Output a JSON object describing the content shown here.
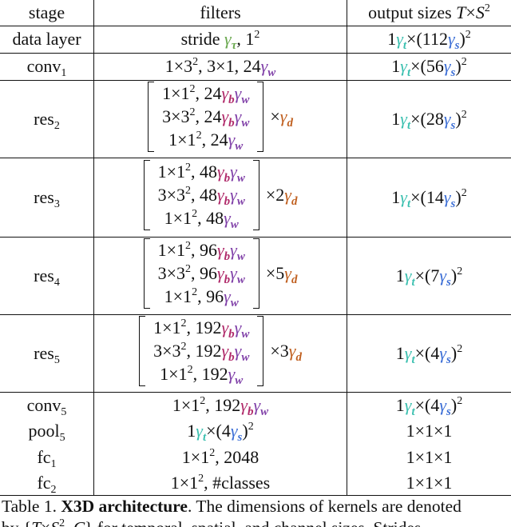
{
  "table": {
    "header": [
      [
        {
          "t": "stage"
        }
      ],
      [
        {
          "t": "filters"
        }
      ],
      [
        {
          "t": "output sizes "
        },
        {
          "t": "T",
          "italic": true
        },
        {
          "t": "×"
        },
        {
          "t": "S",
          "italic": true
        },
        {
          "t": "2",
          "pos": "sup"
        }
      ]
    ],
    "rows": [
      {
        "stage": [
          {
            "t": "data layer"
          }
        ],
        "filters": [
          {
            "t": "stride "
          },
          {
            "t": "γ",
            "sub": "τ",
            "color": "#6aa84f"
          },
          {
            "t": ", 1"
          },
          {
            "t": "2",
            "pos": "sup"
          }
        ],
        "output": [
          {
            "t": "1"
          },
          {
            "t": "γ",
            "sub": "t",
            "color": "#3cc0b0"
          },
          {
            "t": "×(112"
          },
          {
            "t": "γ",
            "sub": "s",
            "color": "#3d6fd6"
          },
          {
            "t": ")"
          },
          {
            "t": "2",
            "pos": "sup"
          }
        ]
      },
      {
        "stage": [
          {
            "t": "conv"
          },
          {
            "t": "1",
            "pos": "sub"
          }
        ],
        "filters": [
          {
            "t": "1×3"
          },
          {
            "t": "2",
            "pos": "sup"
          },
          {
            "t": ", 3×1, 24"
          },
          {
            "t": "γ",
            "sub": "w",
            "color": "#8040a8"
          }
        ],
        "output": [
          {
            "t": "1"
          },
          {
            "t": "γ",
            "sub": "t",
            "color": "#3cc0b0"
          },
          {
            "t": "×(56"
          },
          {
            "t": "γ",
            "sub": "s",
            "color": "#3d6fd6"
          },
          {
            "t": ")"
          },
          {
            "t": "2",
            "pos": "sup"
          }
        ]
      },
      {
        "stage": [
          {
            "t": "res"
          },
          {
            "t": "2",
            "pos": "sub"
          }
        ],
        "block": {
          "lines": [
            [
              {
                "t": "1×1"
              },
              {
                "t": "2",
                "pos": "sup"
              },
              {
                "t": ", 24"
              },
              {
                "t": "γ",
                "sub": "b",
                "color": "#b02a6a"
              },
              {
                "t": "γ",
                "sub": "w",
                "color": "#8040a8"
              }
            ],
            [
              {
                "t": "3×3"
              },
              {
                "t": "2",
                "pos": "sup"
              },
              {
                "t": ", 24"
              },
              {
                "t": "γ",
                "sub": "b",
                "color": "#b02a6a"
              },
              {
                "t": "γ",
                "sub": "w",
                "color": "#8040a8"
              }
            ],
            [
              {
                "t": "1×1"
              },
              {
                "t": "2",
                "pos": "sup"
              },
              {
                "t": ", 24"
              },
              {
                "t": "γ",
                "sub": "w",
                "color": "#8040a8"
              }
            ]
          ],
          "multiplier": [
            {
              "t": "×"
            },
            {
              "t": "γ",
              "sub": "d",
              "color": "#c06020"
            }
          ]
        },
        "output": [
          {
            "t": "1"
          },
          {
            "t": "γ",
            "sub": "t",
            "color": "#3cc0b0"
          },
          {
            "t": "×(28"
          },
          {
            "t": "γ",
            "sub": "s",
            "color": "#3d6fd6"
          },
          {
            "t": ")"
          },
          {
            "t": "2",
            "pos": "sup"
          }
        ]
      },
      {
        "stage": [
          {
            "t": "res"
          },
          {
            "t": "3",
            "pos": "sub"
          }
        ],
        "block": {
          "lines": [
            [
              {
                "t": "1×1"
              },
              {
                "t": "2",
                "pos": "sup"
              },
              {
                "t": ", 48"
              },
              {
                "t": "γ",
                "sub": "b",
                "color": "#b02a6a"
              },
              {
                "t": "γ",
                "sub": "w",
                "color": "#8040a8"
              }
            ],
            [
              {
                "t": "3×3"
              },
              {
                "t": "2",
                "pos": "sup"
              },
              {
                "t": ", 48"
              },
              {
                "t": "γ",
                "sub": "b",
                "color": "#b02a6a"
              },
              {
                "t": "γ",
                "sub": "w",
                "color": "#8040a8"
              }
            ],
            [
              {
                "t": "1×1"
              },
              {
                "t": "2",
                "pos": "sup"
              },
              {
                "t": ", 48"
              },
              {
                "t": "γ",
                "sub": "w",
                "color": "#8040a8"
              }
            ]
          ],
          "multiplier": [
            {
              "t": "×2"
            },
            {
              "t": "γ",
              "sub": "d",
              "color": "#c06020"
            }
          ]
        },
        "output": [
          {
            "t": "1"
          },
          {
            "t": "γ",
            "sub": "t",
            "color": "#3cc0b0"
          },
          {
            "t": "×(14"
          },
          {
            "t": "γ",
            "sub": "s",
            "color": "#3d6fd6"
          },
          {
            "t": ")"
          },
          {
            "t": "2",
            "pos": "sup"
          }
        ]
      },
      {
        "stage": [
          {
            "t": "res"
          },
          {
            "t": "4",
            "pos": "sub"
          }
        ],
        "block": {
          "lines": [
            [
              {
                "t": "1×1"
              },
              {
                "t": "2",
                "pos": "sup"
              },
              {
                "t": ", 96"
              },
              {
                "t": "γ",
                "sub": "b",
                "color": "#b02a6a"
              },
              {
                "t": "γ",
                "sub": "w",
                "color": "#8040a8"
              }
            ],
            [
              {
                "t": "3×3"
              },
              {
                "t": "2",
                "pos": "sup"
              },
              {
                "t": ", 96"
              },
              {
                "t": "γ",
                "sub": "b",
                "color": "#b02a6a"
              },
              {
                "t": "γ",
                "sub": "w",
                "color": "#8040a8"
              }
            ],
            [
              {
                "t": "1×1"
              },
              {
                "t": "2",
                "pos": "sup"
              },
              {
                "t": ", 96"
              },
              {
                "t": "γ",
                "sub": "w",
                "color": "#8040a8"
              }
            ]
          ],
          "multiplier": [
            {
              "t": "×5"
            },
            {
              "t": "γ",
              "sub": "d",
              "color": "#c06020"
            }
          ]
        },
        "output": [
          {
            "t": "1"
          },
          {
            "t": "γ",
            "sub": "t",
            "color": "#3cc0b0"
          },
          {
            "t": "×(7"
          },
          {
            "t": "γ",
            "sub": "s",
            "color": "#3d6fd6"
          },
          {
            "t": ")"
          },
          {
            "t": "2",
            "pos": "sup"
          }
        ]
      },
      {
        "stage": [
          {
            "t": "res"
          },
          {
            "t": "5",
            "pos": "sub"
          }
        ],
        "block": {
          "lines": [
            [
              {
                "t": "1×1"
              },
              {
                "t": "2",
                "pos": "sup"
              },
              {
                "t": ", 192"
              },
              {
                "t": "γ",
                "sub": "b",
                "color": "#b02a6a"
              },
              {
                "t": "γ",
                "sub": "w",
                "color": "#8040a8"
              }
            ],
            [
              {
                "t": "3×3"
              },
              {
                "t": "2",
                "pos": "sup"
              },
              {
                "t": ", 192"
              },
              {
                "t": "γ",
                "sub": "b",
                "color": "#b02a6a"
              },
              {
                "t": "γ",
                "sub": "w",
                "color": "#8040a8"
              }
            ],
            [
              {
                "t": "1×1"
              },
              {
                "t": "2",
                "pos": "sup"
              },
              {
                "t": ", 192"
              },
              {
                "t": "γ",
                "sub": "w",
                "color": "#8040a8"
              }
            ]
          ],
          "multiplier": [
            {
              "t": "×3"
            },
            {
              "t": "γ",
              "sub": "d",
              "color": "#c06020"
            }
          ]
        },
        "output": [
          {
            "t": "1"
          },
          {
            "t": "γ",
            "sub": "t",
            "color": "#3cc0b0"
          },
          {
            "t": "×(4"
          },
          {
            "t": "γ",
            "sub": "s",
            "color": "#3d6fd6"
          },
          {
            "t": ")"
          },
          {
            "t": "2",
            "pos": "sup"
          }
        ]
      },
      {
        "stage": [
          {
            "t": "conv"
          },
          {
            "t": "5",
            "pos": "sub"
          }
        ],
        "filters": [
          {
            "t": "1×1"
          },
          {
            "t": "2",
            "pos": "sup"
          },
          {
            "t": ", 192"
          },
          {
            "t": "γ",
            "sub": "b",
            "color": "#b02a6a"
          },
          {
            "t": "γ",
            "sub": "w",
            "color": "#8040a8"
          }
        ],
        "output": [
          {
            "t": "1"
          },
          {
            "t": "γ",
            "sub": "t",
            "color": "#3cc0b0"
          },
          {
            "t": "×(4"
          },
          {
            "t": "γ",
            "sub": "s",
            "color": "#3d6fd6"
          },
          {
            "t": ")"
          },
          {
            "t": "2",
            "pos": "sup"
          }
        ]
      },
      {
        "stage": [
          {
            "t": "pool"
          },
          {
            "t": "5",
            "pos": "sub"
          }
        ],
        "filters": [
          {
            "t": "1"
          },
          {
            "t": "γ",
            "sub": "t",
            "color": "#3cc0b0"
          },
          {
            "t": "×(4"
          },
          {
            "t": "γ",
            "sub": "s",
            "color": "#3d6fd6"
          },
          {
            "t": ")"
          },
          {
            "t": "2",
            "pos": "sup"
          }
        ],
        "output": [
          {
            "t": "1×1×1"
          }
        ]
      },
      {
        "stage": [
          {
            "t": "fc"
          },
          {
            "t": "1",
            "pos": "sub"
          }
        ],
        "filters": [
          {
            "t": "1×1"
          },
          {
            "t": "2",
            "pos": "sup"
          },
          {
            "t": ", 2048"
          }
        ],
        "output": [
          {
            "t": "1×1×1"
          }
        ]
      },
      {
        "stage": [
          {
            "t": "fc"
          },
          {
            "t": "2",
            "pos": "sub"
          }
        ],
        "filters": [
          {
            "t": "1×1"
          },
          {
            "t": "2",
            "pos": "sup"
          },
          {
            "t": ",  #classes"
          }
        ],
        "output": [
          {
            "t": "1×1×1"
          }
        ]
      }
    ]
  },
  "caption": {
    "lines": [
      [
        {
          "t": "Table 1. "
        },
        {
          "t": "X3D architecture",
          "bold": true
        },
        {
          "t": ". The dimensions of kernels are denoted"
        }
      ],
      [
        {
          "t": "by {"
        },
        {
          "t": "T",
          "italic": true
        },
        {
          "t": "×"
        },
        {
          "t": "S",
          "italic": true
        },
        {
          "t": "2",
          "pos": "sup"
        },
        {
          "t": ", "
        },
        {
          "t": "C",
          "italic": true
        },
        {
          "t": "} for temporal, spatial, and channel sizes. Strides"
        }
      ]
    ]
  }
}
